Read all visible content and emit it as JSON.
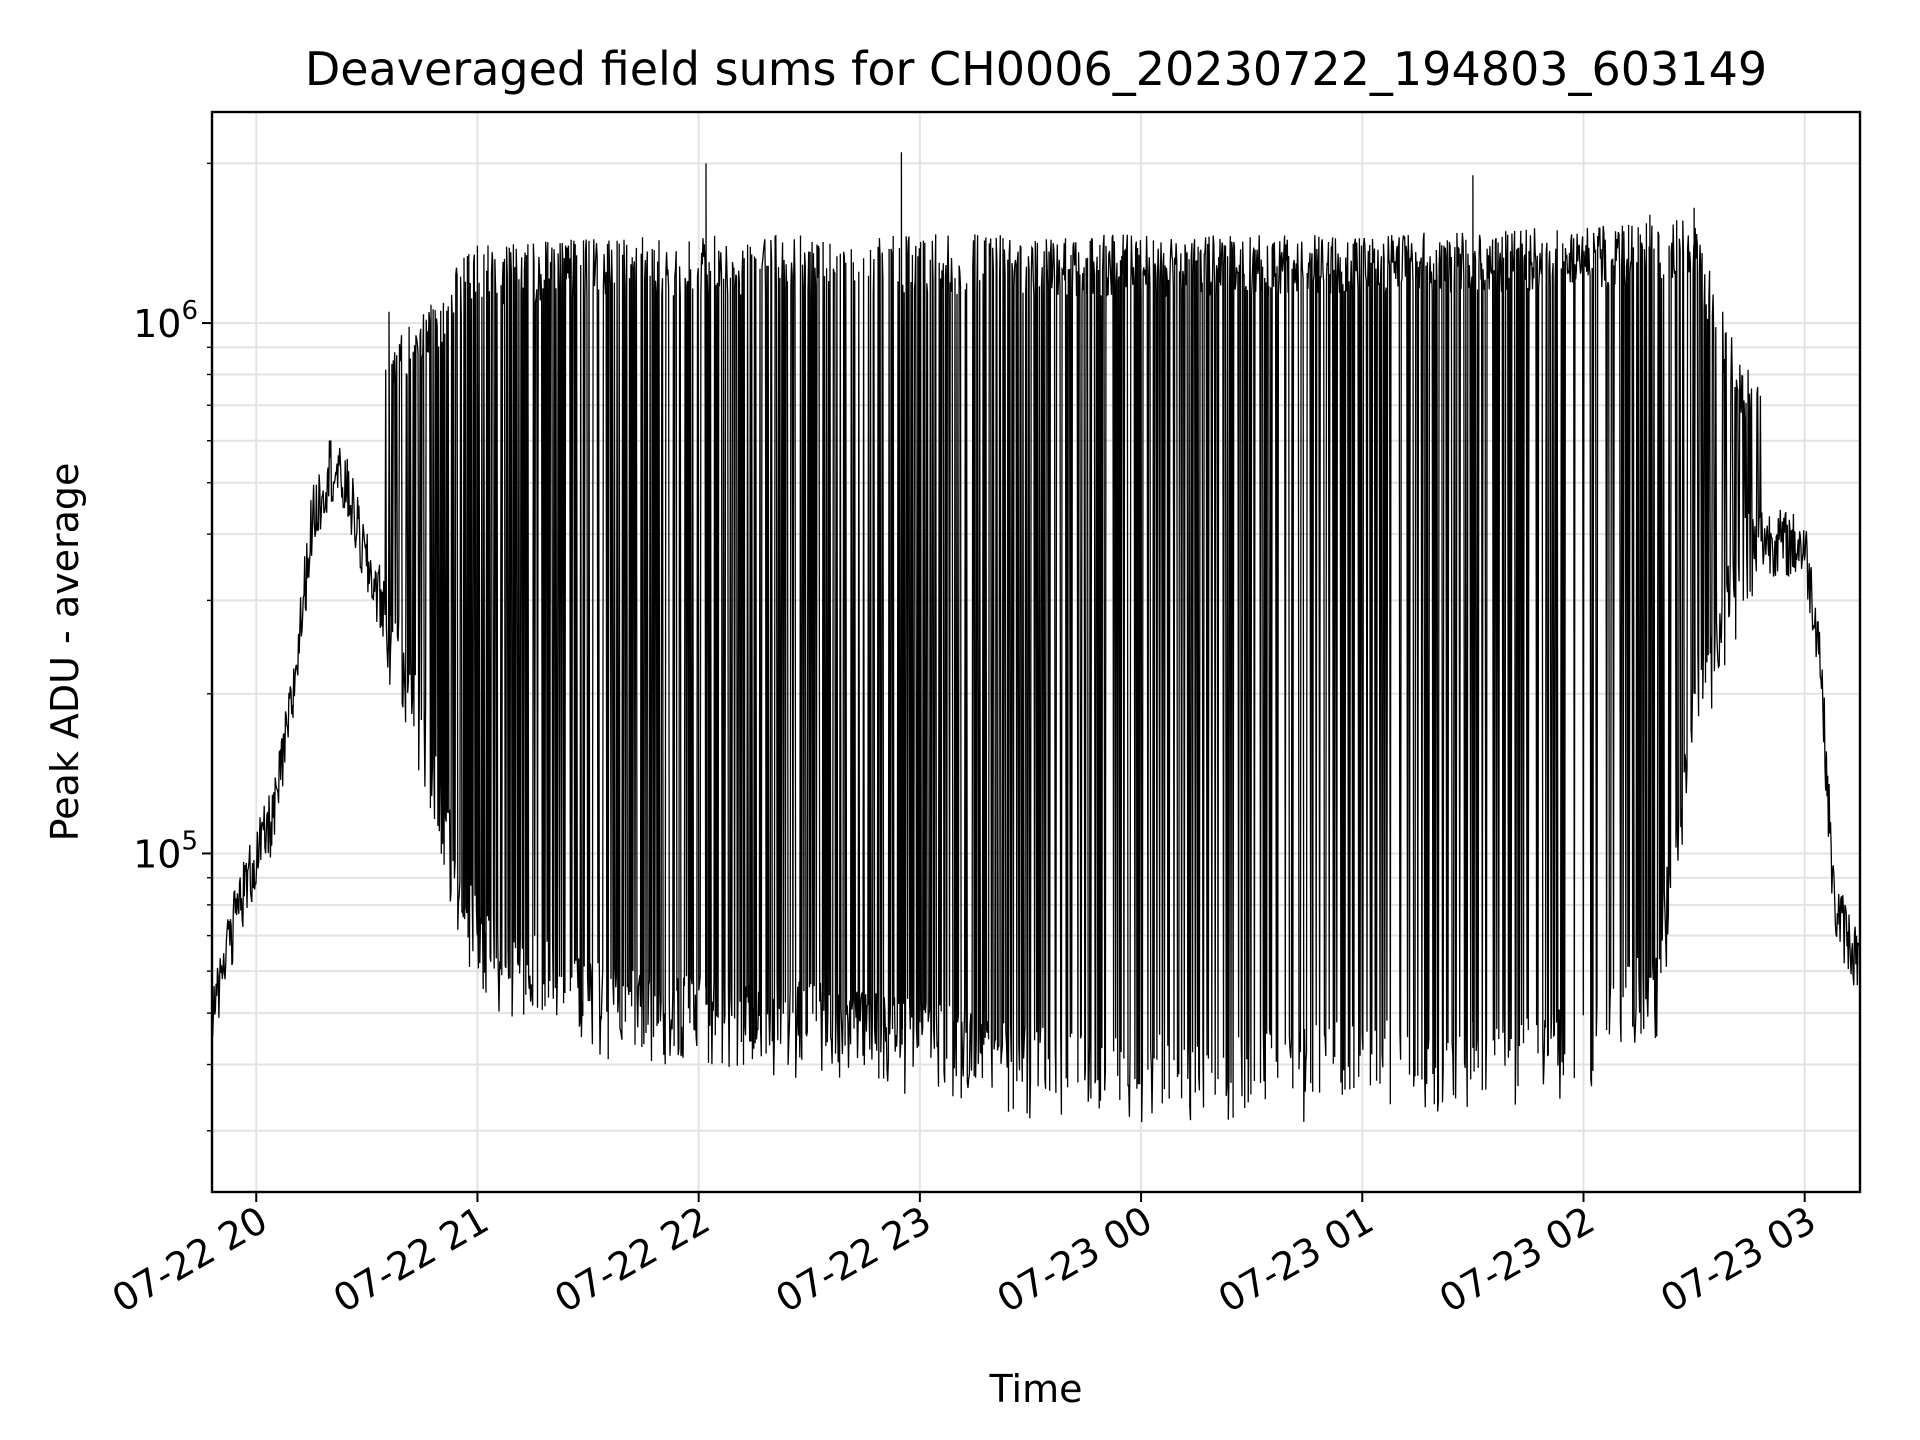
{
  "chart_data": {
    "type": "line",
    "title": "Deaveraged field sums for CH0006_20230722_194803_603149",
    "xlabel": "Time",
    "ylabel": "Peak ADU - average",
    "x_axis_type": "datetime",
    "xlim": [
      "2023-07-22 19:48",
      "2023-07-23 03:15"
    ],
    "ylim": [
      23000,
      2500000
    ],
    "y_scale": "log",
    "grid": true,
    "legend": "none",
    "x_ticks": [
      {
        "value": "2023-07-22 20:00",
        "label": "07-22 20"
      },
      {
        "value": "2023-07-22 21:00",
        "label": "07-22 21"
      },
      {
        "value": "2023-07-22 22:00",
        "label": "07-22 22"
      },
      {
        "value": "2023-07-22 23:00",
        "label": "07-22 23"
      },
      {
        "value": "2023-07-23 00:00",
        "label": "07-23 00"
      },
      {
        "value": "2023-07-23 01:00",
        "label": "07-23 01"
      },
      {
        "value": "2023-07-23 02:00",
        "label": "07-23 02"
      },
      {
        "value": "2023-07-23 03:00",
        "label": "07-23 03"
      }
    ],
    "y_ticks": [
      {
        "value": 100000,
        "base": "10",
        "exp": "5"
      },
      {
        "value": 1000000,
        "base": "10",
        "exp": "6"
      }
    ],
    "series": [
      {
        "color": "#000000",
        "baseline": {
          "x": [
            "2023-07-22 19:48",
            "2023-07-22 19:55",
            "2023-07-22 20:00",
            "2023-07-22 20:05",
            "2023-07-22 20:10",
            "2023-07-22 20:15",
            "2023-07-22 20:20",
            "2023-07-22 20:25",
            "2023-07-22 20:30",
            "2023-07-22 20:36",
            "2023-07-22 20:45",
            "2023-07-22 20:50",
            "2023-07-22 21:00",
            "2023-07-22 21:30",
            "2023-07-22 22:00",
            "2023-07-22 22:30",
            "2023-07-22 23:00",
            "2023-07-22 23:15",
            "2023-07-22 23:30",
            "2023-07-22 23:45",
            "2023-07-23 00:00",
            "2023-07-23 00:30",
            "2023-07-23 01:00",
            "2023-07-23 01:30",
            "2023-07-23 02:00",
            "2023-07-23 02:20",
            "2023-07-23 02:30",
            "2023-07-23 02:45",
            "2023-07-23 03:00",
            "2023-07-23 03:04",
            "2023-07-23 03:08",
            "2023-07-23 03:15"
          ],
          "y": [
            50000,
            80000,
            98000,
            120000,
            200000,
            420000,
            540000,
            480000,
            350000,
            280000,
            180000,
            120000,
            70000,
            55000,
            52000,
            50000,
            46000,
            44000,
            42000,
            40000,
            40000,
            41000,
            42000,
            43000,
            45000,
            60000,
            200000,
            400000,
            380000,
            250000,
            80000,
            62000
          ]
        },
        "peaks": {
          "x": [
            "2023-07-22 20:36",
            "2023-07-22 21:00",
            "2023-07-22 22:02",
            "2023-07-22 22:55",
            "2023-07-23 01:30",
            "2023-07-23 02:18",
            "2023-07-23 02:30"
          ],
          "y": [
            1050000,
            1400000,
            2000000,
            2100000,
            1900000,
            1600000,
            1650000
          ]
        },
        "envelope": {
          "x": [
            "2023-07-22 20:30",
            "2023-07-22 21:00",
            "2023-07-22 22:00",
            "2023-07-22 23:00",
            "2023-07-23 00:00",
            "2023-07-23 01:00",
            "2023-07-23 02:00",
            "2023-07-23 02:30",
            "2023-07-23 02:40",
            "2023-07-23 02:50"
          ],
          "y": [
            800000,
            1350000,
            1400000,
            1400000,
            1400000,
            1400000,
            1450000,
            1500000,
            900000,
            700000
          ]
        }
      }
    ]
  }
}
